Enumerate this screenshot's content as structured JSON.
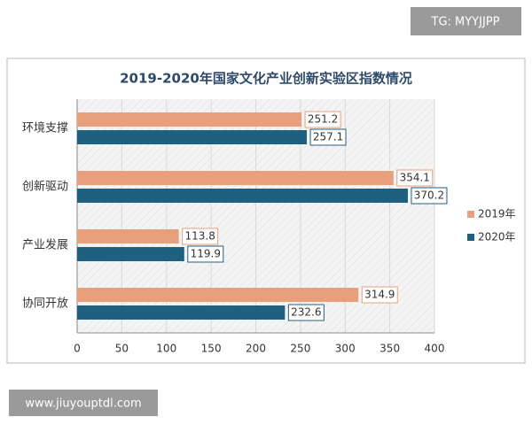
{
  "chart_data": {
    "type": "bar",
    "orientation": "horizontal",
    "title": "2019-2020年国家文化产业创新实验区指数情况",
    "categories": [
      "环境支撑",
      "创新驱动",
      "产业发展",
      "协同开放"
    ],
    "series": [
      {
        "name": "2019年",
        "color": "#e8a07c",
        "values": [
          251.2,
          354.1,
          113.8,
          314.9
        ]
      },
      {
        "name": "2020年",
        "color": "#1f5f7f",
        "values": [
          257.1,
          370.2,
          119.9,
          232.6
        ]
      }
    ],
    "xlim": [
      0,
      400
    ],
    "xticks": [
      0,
      50,
      100,
      150,
      200,
      250,
      300,
      350,
      400
    ],
    "grid": true,
    "legend": "right",
    "annotations": [
      "TG: MYYJJPP",
      "www.jiuyouptdl.com"
    ]
  }
}
